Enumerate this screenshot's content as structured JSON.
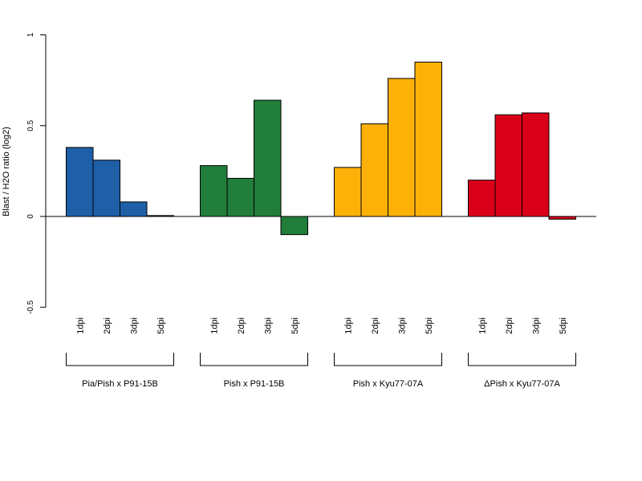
{
  "chart_data": {
    "type": "bar",
    "ylabel": "Blast / H2O ratio (log2)",
    "ylim": [
      -0.5,
      1
    ],
    "yticks": [
      -0.5,
      0,
      0.5,
      1
    ],
    "ytick_labels": [
      "-0.5",
      "0",
      "0.5",
      "1"
    ],
    "grid": false,
    "groups": [
      {
        "name": "Pia/Pish x P91-15B",
        "color": "#1F5FA8",
        "categories": [
          "1dpi",
          "2dpi",
          "3dpi",
          "5dpi"
        ],
        "values": [
          0.38,
          0.31,
          0.08,
          0.005
        ]
      },
      {
        "name": "Pish x P91-15B",
        "color": "#217D3A",
        "categories": [
          "1dpi",
          "2dpi",
          "3dpi",
          "5dpi"
        ],
        "values": [
          0.28,
          0.21,
          0.64,
          -0.1
        ]
      },
      {
        "name": "Pish x Kyu77-07A",
        "color": "#FDB108",
        "categories": [
          "1dpi",
          "2dpi",
          "3dpi",
          "5dpi"
        ],
        "values": [
          0.27,
          0.51,
          0.76,
          0.85
        ]
      },
      {
        "name": "ΔPish x Kyu77-07A",
        "color": "#DA0019",
        "categories": [
          "1dpi",
          "2dpi",
          "3dpi",
          "5dpi"
        ],
        "values": [
          0.2,
          0.56,
          0.57,
          -0.015
        ]
      }
    ]
  }
}
